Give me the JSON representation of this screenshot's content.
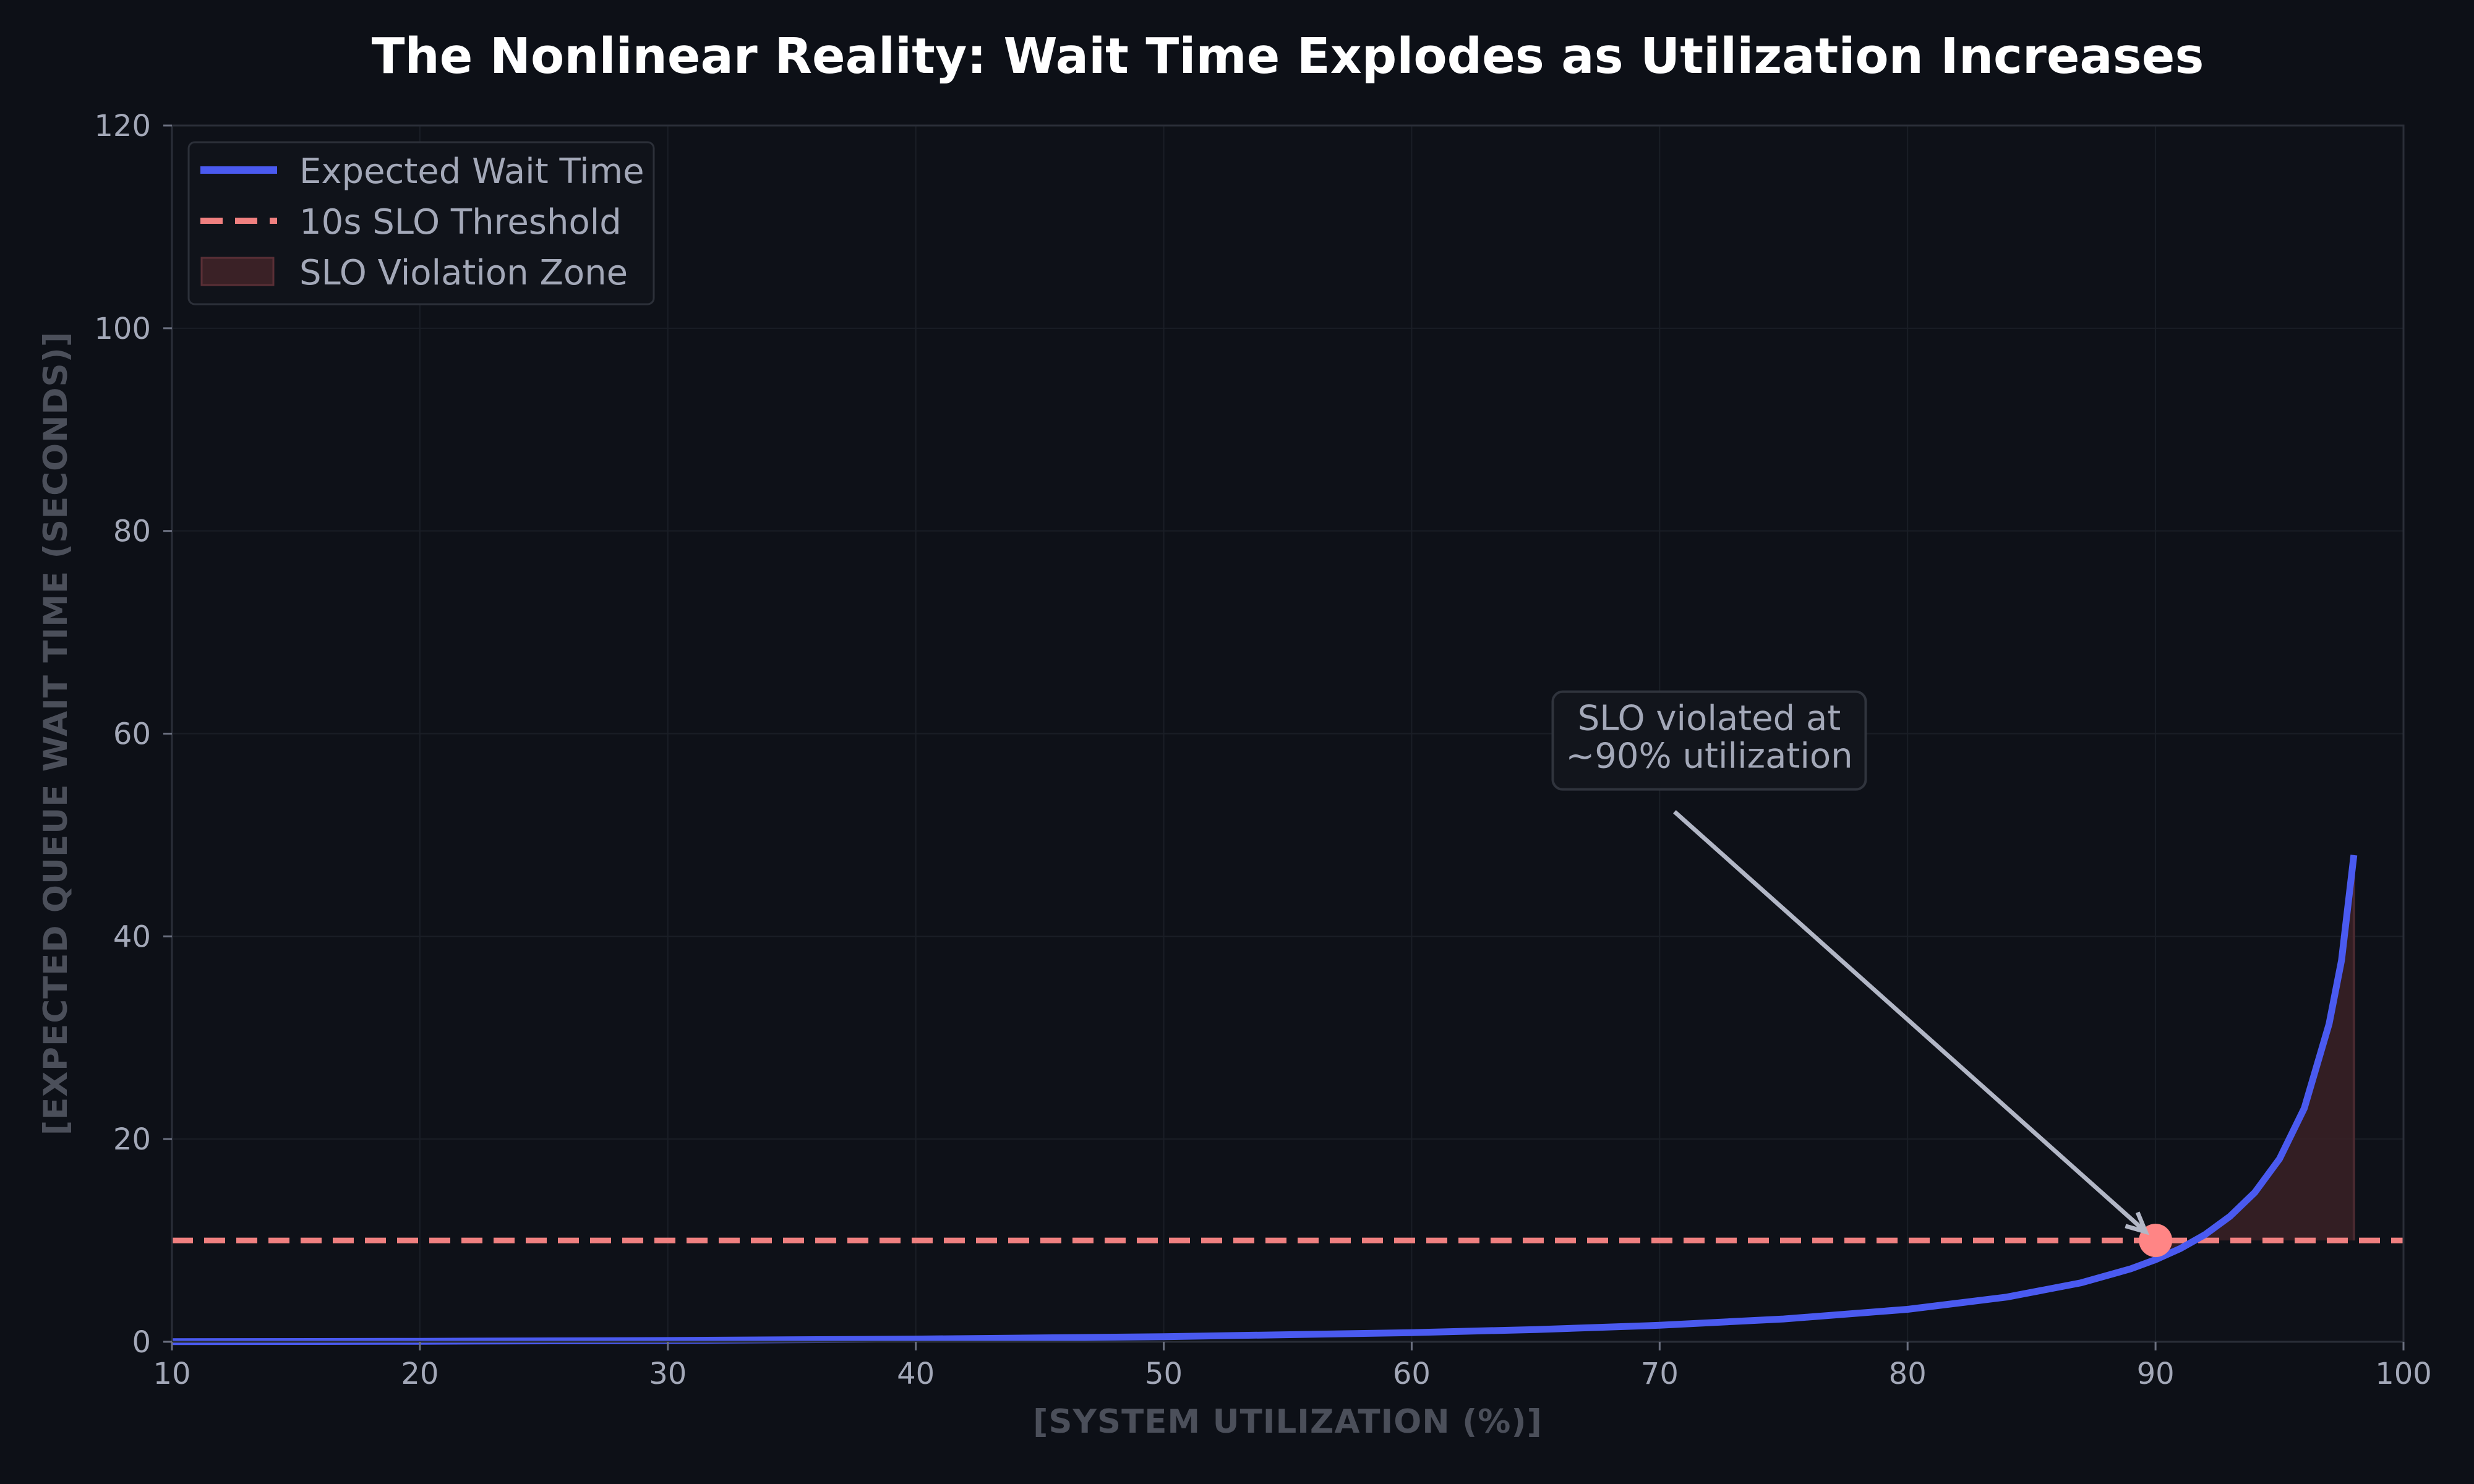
{
  "chart_data": {
    "type": "line",
    "title": "The Nonlinear Reality: Wait Time Explodes as Utilization Increases",
    "xlabel": "[SYSTEM UTILIZATION (%)]",
    "ylabel": "[EXPECTED QUEUE WAIT TIME (SECONDS)]",
    "xlim": [
      10,
      100
    ],
    "ylim": [
      0,
      120
    ],
    "xticks": [
      10,
      20,
      30,
      40,
      50,
      60,
      70,
      80,
      90,
      100
    ],
    "yticks": [
      0,
      20,
      40,
      60,
      80,
      100,
      120
    ],
    "grid": true,
    "series": [
      {
        "name": "Expected Wait Time",
        "color": "#4a5af0",
        "x": [
          10,
          20,
          30,
          40,
          50,
          60,
          65,
          70,
          75,
          80,
          84,
          87,
          89,
          90,
          91,
          92,
          93,
          94,
          95,
          96,
          97,
          97.5,
          98
        ],
        "y": [
          0.011,
          0.05,
          0.13,
          0.27,
          0.5,
          0.9,
          1.21,
          1.63,
          2.25,
          3.2,
          4.41,
          5.82,
          7.2,
          8.1,
          9.2,
          10.58,
          12.37,
          14.73,
          18.05,
          23.04,
          31.36,
          37.63,
          48.02
        ]
      }
    ],
    "threshold": {
      "name": "10s SLO Threshold",
      "value": 10,
      "color": "#f08080"
    },
    "violation_zone": {
      "name": "SLO Violation Zone",
      "x_start": 90,
      "x_end": 98,
      "color": "#3a2126"
    },
    "highlight_point": {
      "x": 90,
      "y": 10,
      "color": "#ff8585"
    },
    "annotation": {
      "lines": [
        "SLO violated at",
        "~90% utilization"
      ],
      "text_x": 72,
      "text_y": 57,
      "arrow_to_x": 90,
      "arrow_to_y": 10
    },
    "legend": {
      "position": "top-left",
      "entries": [
        "Expected Wait Time",
        "10s SLO Threshold",
        "SLO Violation Zone"
      ]
    }
  }
}
